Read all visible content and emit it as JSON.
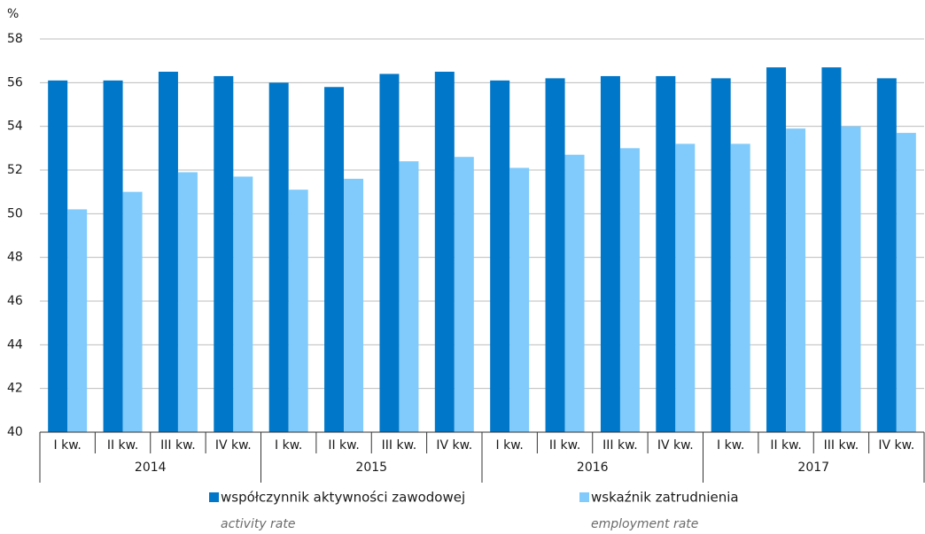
{
  "chart_data": {
    "type": "bar",
    "y_label": "%",
    "categories": [
      "I kw.",
      "II kw.",
      "III kw.",
      "IV kw.",
      "I kw.",
      "II kw.",
      "III kw.",
      "IV kw.",
      "I kw.",
      "II kw.",
      "III kw.",
      "IV kw.",
      "I kw.",
      "II kw.",
      "III kw.",
      "IV kw."
    ],
    "category_groups": [
      "2014",
      "2015",
      "2016",
      "2017"
    ],
    "series": [
      {
        "name": "współczynnik aktywności zawodowej",
        "name_en": "activity rate",
        "color": "#0077c8",
        "values": [
          56.1,
          56.1,
          56.5,
          56.3,
          56.0,
          55.8,
          56.4,
          56.5,
          56.1,
          56.2,
          56.3,
          56.3,
          56.2,
          56.7,
          56.7,
          56.2
        ]
      },
      {
        "name": "wskaźnik zatrudnienia",
        "name_en": "employment rate",
        "color": "#80cbfb",
        "values": [
          50.2,
          51.0,
          51.9,
          51.7,
          51.1,
          51.6,
          52.4,
          52.6,
          52.1,
          52.7,
          53.0,
          53.2,
          53.2,
          53.9,
          54.0,
          53.7
        ]
      }
    ],
    "ylim": [
      40,
      58
    ],
    "yticks": [
      40,
      42,
      44,
      46,
      48,
      50,
      52,
      54,
      56,
      58
    ],
    "grid": true
  }
}
